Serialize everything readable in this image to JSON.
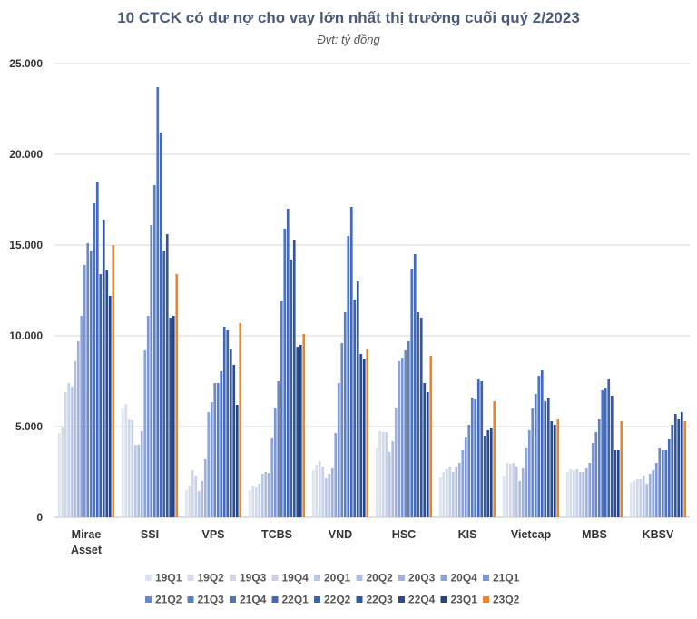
{
  "chart_data": {
    "type": "bar",
    "title": "10 CTCK có dư nợ cho vay lớn nhất thị trường cuối quý 2/2023",
    "subtitle": "Đvt: tỷ đồng",
    "xlabel": "",
    "ylabel": "",
    "ylim": [
      0,
      25000
    ],
    "yticks": [
      "0",
      "5.000",
      "10.000",
      "15.000",
      "20.000",
      "25.000"
    ],
    "ytick_values": [
      0,
      5000,
      10000,
      15000,
      20000,
      25000
    ],
    "grid": true,
    "legend_position": "bottom",
    "categories": [
      "Mirae Asset",
      "SSI",
      "VPS",
      "TCBS",
      "VND",
      "HSC",
      "KIS",
      "Vietcap",
      "MBS",
      "KBSV"
    ],
    "category_lines": [
      [
        "Mirae",
        "Asset"
      ],
      [
        "SSI"
      ],
      [
        "VPS"
      ],
      [
        "TCBS"
      ],
      [
        "VND"
      ],
      [
        "HSC"
      ],
      [
        "KIS"
      ],
      [
        "Vietcap"
      ],
      [
        "MBS"
      ],
      [
        "KBSV"
      ]
    ],
    "series": [
      {
        "name": "19Q1",
        "color": "#dde3ef",
        "values": [
          4650,
          6000,
          1500,
          1500,
          2600,
          3800,
          2200,
          2300,
          2500,
          1900
        ]
      },
      {
        "name": "19Q2",
        "color": "#d6ddec",
        "values": [
          5000,
          6250,
          1750,
          1700,
          2900,
          4750,
          2500,
          3000,
          2650,
          2000
        ]
      },
      {
        "name": "19Q3",
        "color": "#cfd7e9",
        "values": [
          6900,
          5400,
          2600,
          1650,
          3100,
          4700,
          2650,
          2950,
          2600,
          2100
        ]
      },
      {
        "name": "19Q4",
        "color": "#c8d1e6",
        "values": [
          7400,
          5350,
          2300,
          1850,
          2800,
          4700,
          2800,
          3000,
          2650,
          2100
        ]
      },
      {
        "name": "20Q1",
        "color": "#bcc8e3",
        "values": [
          7200,
          4000,
          1450,
          2400,
          2150,
          3600,
          2500,
          2800,
          2500,
          2300
        ]
      },
      {
        "name": "20Q2",
        "color": "#aebde0",
        "values": [
          8600,
          4000,
          2000,
          2500,
          2400,
          4200,
          2800,
          2000,
          2500,
          1850
        ]
      },
      {
        "name": "20Q3",
        "color": "#9fb1dc",
        "values": [
          9700,
          4750,
          3200,
          2450,
          2700,
          6050,
          3000,
          2700,
          2700,
          2400
        ]
      },
      {
        "name": "20Q4",
        "color": "#8ea4d8",
        "values": [
          11100,
          9200,
          5800,
          4350,
          4650,
          8600,
          3700,
          3800,
          3000,
          2600
        ]
      },
      {
        "name": "21Q1",
        "color": "#7b97d4",
        "values": [
          13900,
          11100,
          6350,
          6000,
          7400,
          8800,
          4400,
          4800,
          4100,
          3000
        ]
      },
      {
        "name": "21Q2",
        "color": "#6889cc",
        "values": [
          15100,
          16100,
          7400,
          7500,
          9600,
          9200,
          5100,
          6000,
          4700,
          3800
        ]
      },
      {
        "name": "21Q3",
        "color": "#5a7fc7",
        "values": [
          14700,
          18300,
          7400,
          11900,
          11300,
          9700,
          6600,
          6800,
          5400,
          3700
        ]
      },
      {
        "name": "21Q4",
        "color": "#4e74c2",
        "values": [
          17300,
          23700,
          8050,
          15900,
          15500,
          13700,
          6500,
          7800,
          7000,
          3700
        ]
      },
      {
        "name": "22Q1",
        "color": "#4469b8",
        "values": [
          18500,
          21200,
          10500,
          17000,
          17100,
          14500,
          7600,
          8100,
          7100,
          4300
        ]
      },
      {
        "name": "22Q2",
        "color": "#3c61ad",
        "values": [
          13400,
          14700,
          10300,
          14200,
          12000,
          11300,
          7500,
          6400,
          7600,
          5100
        ]
      },
      {
        "name": "22Q3",
        "color": "#33579f",
        "values": [
          16400,
          15600,
          9300,
          15300,
          13000,
          11000,
          4500,
          6600,
          6700,
          5700
        ]
      },
      {
        "name": "22Q4",
        "color": "#2c4c90",
        "values": [
          13600,
          11000,
          8400,
          9400,
          9000,
          7400,
          4800,
          5300,
          3700,
          5400
        ]
      },
      {
        "name": "23Q1",
        "color": "#264482",
        "values": [
          12200,
          11100,
          6200,
          9500,
          8700,
          6900,
          4900,
          5100,
          3700,
          5800
        ]
      },
      {
        "name": "23Q2",
        "color": "#f28222",
        "values": [
          15000,
          13400,
          10700,
          10100,
          9300,
          8900,
          6400,
          5400,
          5300,
          5300
        ]
      }
    ]
  }
}
